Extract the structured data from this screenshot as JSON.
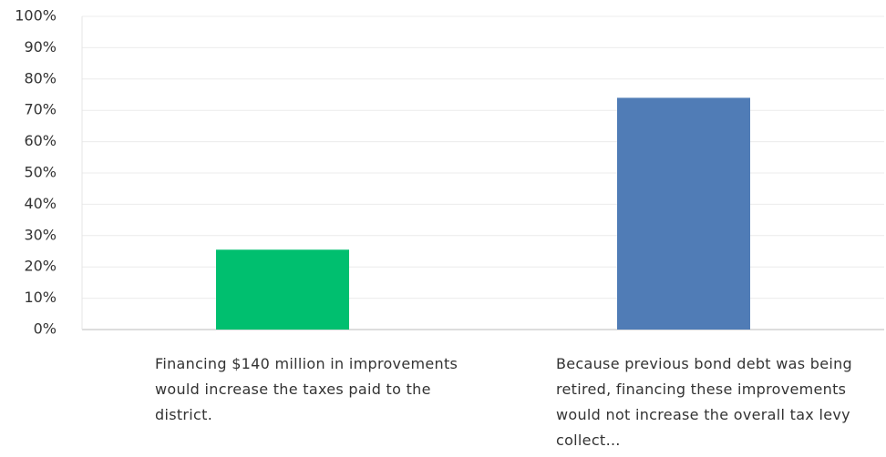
{
  "chart_data": {
    "type": "bar",
    "categories": [
      "Financing $140 million in improvements would increase the taxes paid to the district.",
      "Because previous bond debt was being retired, financing these improvements would not increase the overall tax levy collect…"
    ],
    "values": [
      25.5,
      74
    ],
    "colors": [
      "#00bf6f",
      "#507cb6"
    ],
    "ylim": [
      0,
      100
    ],
    "yticks": [
      {
        "value": 0,
        "label": "0%"
      },
      {
        "value": 10,
        "label": "10%"
      },
      {
        "value": 20,
        "label": "20%"
      },
      {
        "value": 30,
        "label": "30%"
      },
      {
        "value": 40,
        "label": "40%"
      },
      {
        "value": 50,
        "label": "50%"
      },
      {
        "value": 60,
        "label": "60%"
      },
      {
        "value": 70,
        "label": "70%"
      },
      {
        "value": 80,
        "label": "80%"
      },
      {
        "value": 90,
        "label": "90%"
      },
      {
        "value": 100,
        "label": "100%"
      }
    ],
    "grid": true
  }
}
